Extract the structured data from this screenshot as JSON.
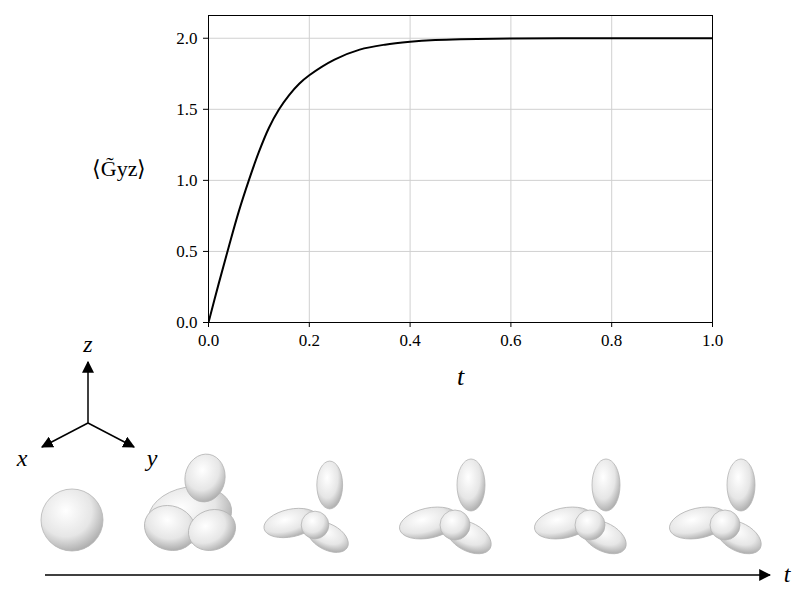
{
  "chart_data": {
    "type": "line",
    "xlabel": "t",
    "ylabel": "⟨G̃yz⟩",
    "x": [
      0,
      0.02,
      0.04,
      0.06,
      0.08,
      0.1,
      0.12,
      0.14,
      0.16,
      0.18,
      0.2,
      0.25,
      0.3,
      0.35,
      0.4,
      0.45,
      0.5,
      0.6,
      0.7,
      0.8,
      0.9,
      1.0
    ],
    "values": [
      0,
      0.27,
      0.53,
      0.78,
      1.0,
      1.2,
      1.37,
      1.5,
      1.6,
      1.68,
      1.74,
      1.85,
      1.92,
      1.955,
      1.975,
      1.987,
      1.993,
      1.998,
      2.0,
      2.0,
      2.0,
      2.0
    ],
    "color": "#000000",
    "xlim": [
      0,
      1
    ],
    "ylim": [
      0,
      2.16
    ],
    "xticks": [
      {
        "value": 0,
        "label": "0.0"
      },
      {
        "value": 0.2,
        "label": "0.2"
      },
      {
        "value": 0.4,
        "label": "0.4"
      },
      {
        "value": 0.6,
        "label": "0.6"
      },
      {
        "value": 0.8,
        "label": "0.8"
      },
      {
        "value": 1,
        "label": "1.0"
      }
    ],
    "yticks": [
      {
        "value": 0,
        "label": "0.0"
      },
      {
        "value": 0.5,
        "label": "0.5"
      },
      {
        "value": 1,
        "label": "1.0"
      },
      {
        "value": 1.5,
        "label": "1.5"
      },
      {
        "value": 2,
        "label": "2.0"
      }
    ],
    "grid": true
  },
  "illustration": {
    "triad_labels": [
      "x",
      "y",
      "z"
    ],
    "arrow_label": "t"
  }
}
